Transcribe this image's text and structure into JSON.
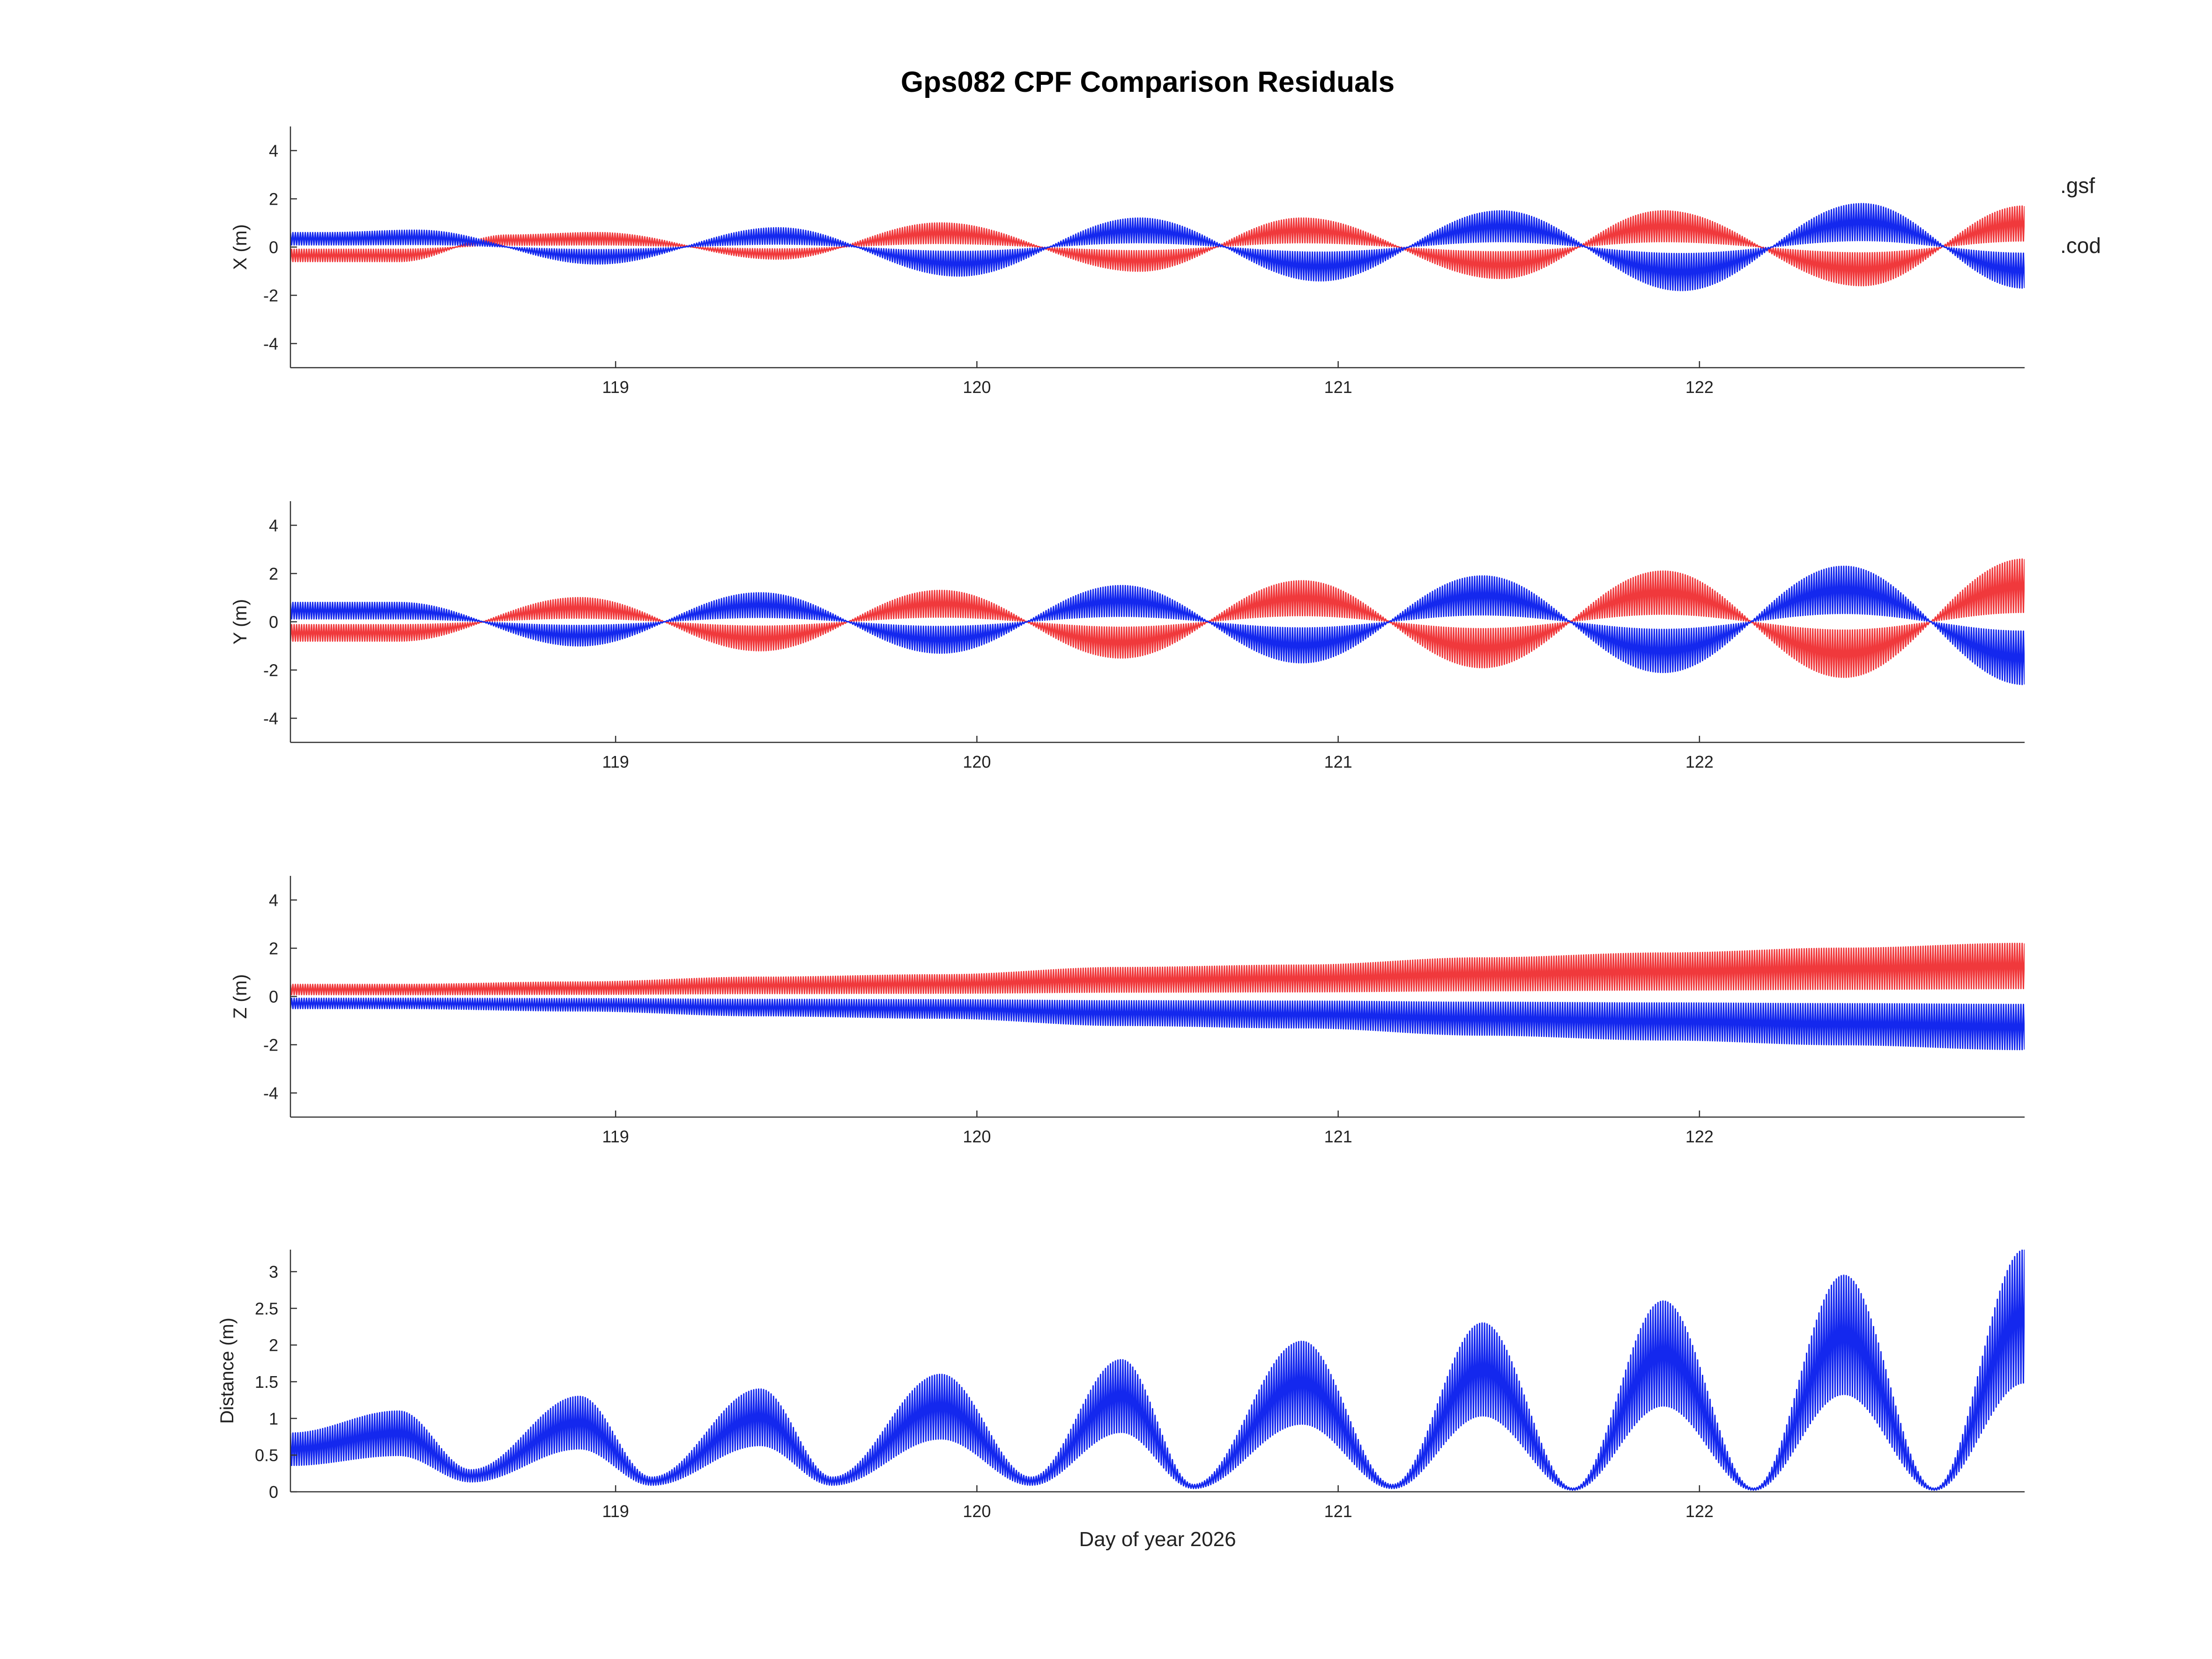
{
  "title": "Gps082 CPF Comparison Residuals",
  "legend": [
    {
      "label": ".gsf",
      "color": "#f0393c"
    },
    {
      "label": ".cod",
      "color": "#1428ee"
    }
  ],
  "chart_data": [
    {
      "type": "line",
      "panel": "X",
      "ylabel": "X (m)",
      "xlim": [
        118.1,
        122.9
      ],
      "ylim": [
        -5,
        5
      ],
      "xticks": [
        "119",
        "120",
        "121",
        "122"
      ],
      "yticks": [
        "4",
        "2",
        "0",
        "-2",
        "-4"
      ],
      "series": [
        {
          "name": ".gsf",
          "envelope_peaks": [
            [
              118.4,
              -0.6
            ],
            [
              118.7,
              0.5
            ],
            [
              118.95,
              0.6
            ],
            [
              119.45,
              -0.5
            ],
            [
              119.9,
              1.0
            ],
            [
              120.45,
              -1.0
            ],
            [
              120.9,
              1.2
            ],
            [
              121.45,
              -1.3
            ],
            [
              121.9,
              1.5
            ],
            [
              122.45,
              -1.6
            ],
            [
              122.9,
              1.7
            ]
          ]
        },
        {
          "name": ".cod",
          "envelope_peaks": [
            [
              118.2,
              0.6
            ],
            [
              118.45,
              0.7
            ],
            [
              118.95,
              -0.7
            ],
            [
              119.45,
              0.8
            ],
            [
              119.95,
              -1.2
            ],
            [
              120.45,
              1.2
            ],
            [
              120.95,
              -1.4
            ],
            [
              121.45,
              1.5
            ],
            [
              121.95,
              -1.8
            ],
            [
              122.45,
              1.8
            ],
            [
              122.9,
              -1.7
            ]
          ]
        }
      ]
    },
    {
      "type": "line",
      "panel": "Y",
      "ylabel": "Y (m)",
      "xlim": [
        118.1,
        122.9
      ],
      "ylim": [
        -5,
        5
      ],
      "xticks": [
        "119",
        "120",
        "121",
        "122"
      ],
      "yticks": [
        "4",
        "2",
        "0",
        "-2",
        "-4"
      ],
      "series": [
        {
          "name": ".gsf",
          "envelope_peaks": [
            [
              118.4,
              -0.8
            ],
            [
              118.9,
              1.0
            ],
            [
              119.4,
              -1.2
            ],
            [
              119.9,
              1.3
            ],
            [
              120.4,
              -1.5
            ],
            [
              120.9,
              1.7
            ],
            [
              121.4,
              -1.9
            ],
            [
              121.9,
              2.1
            ],
            [
              122.4,
              -2.3
            ],
            [
              122.9,
              2.6
            ]
          ]
        },
        {
          "name": ".cod",
          "envelope_peaks": [
            [
              118.4,
              0.8
            ],
            [
              118.9,
              -1.0
            ],
            [
              119.4,
              1.2
            ],
            [
              119.9,
              -1.3
            ],
            [
              120.4,
              1.5
            ],
            [
              120.9,
              -1.7
            ],
            [
              121.4,
              1.9
            ],
            [
              121.9,
              -2.1
            ],
            [
              122.4,
              2.3
            ],
            [
              122.9,
              -2.6
            ]
          ]
        }
      ]
    },
    {
      "type": "line",
      "panel": "Z",
      "ylabel": "Z (m)",
      "xlim": [
        118.1,
        122.9
      ],
      "ylim": [
        -5,
        5
      ],
      "xticks": [
        "119",
        "120",
        "121",
        "122"
      ],
      "yticks": [
        "4",
        "2",
        "0",
        "-2",
        "-4"
      ],
      "series": [
        {
          "name": ".gsf",
          "envelope_peaks": [
            [
              118.4,
              0.5
            ],
            [
              118.9,
              0.6
            ],
            [
              119.4,
              0.8
            ],
            [
              119.9,
              0.9
            ],
            [
              120.4,
              1.2
            ],
            [
              120.9,
              1.3
            ],
            [
              121.4,
              1.6
            ],
            [
              121.9,
              1.8
            ],
            [
              122.4,
              2.0
            ],
            [
              122.9,
              2.2
            ]
          ]
        },
        {
          "name": ".cod",
          "envelope_peaks": [
            [
              118.4,
              -0.5
            ],
            [
              118.9,
              -0.6
            ],
            [
              119.4,
              -0.8
            ],
            [
              119.9,
              -0.9
            ],
            [
              120.4,
              -1.2
            ],
            [
              120.9,
              -1.3
            ],
            [
              121.4,
              -1.6
            ],
            [
              121.9,
              -1.8
            ],
            [
              122.4,
              -2.0
            ],
            [
              122.9,
              -2.2
            ]
          ]
        }
      ]
    },
    {
      "type": "line",
      "panel": "Distance",
      "ylabel": "Distance (m)",
      "xlabel": "Day of year 2026",
      "xlim": [
        118.1,
        122.9
      ],
      "ylim": [
        0,
        3.3
      ],
      "xticks": [
        "119",
        "120",
        "121",
        "122"
      ],
      "yticks": [
        "3",
        "2.5",
        "2",
        "1.5",
        "1",
        "0.5",
        "0"
      ],
      "series": [
        {
          "name": ".cod",
          "envelope_peaks": [
            [
              118.1,
              0.8
            ],
            [
              118.4,
              1.1
            ],
            [
              118.6,
              0.3
            ],
            [
              118.9,
              1.3
            ],
            [
              119.1,
              0.2
            ],
            [
              119.4,
              1.4
            ],
            [
              119.6,
              0.2
            ],
            [
              119.9,
              1.6
            ],
            [
              120.15,
              0.2
            ],
            [
              120.4,
              1.8
            ],
            [
              120.6,
              0.1
            ],
            [
              120.9,
              2.05
            ],
            [
              121.15,
              0.1
            ],
            [
              121.4,
              2.3
            ],
            [
              121.65,
              0.05
            ],
            [
              121.9,
              2.6
            ],
            [
              122.15,
              0.05
            ],
            [
              122.4,
              2.95
            ],
            [
              122.65,
              0.05
            ],
            [
              122.9,
              3.3
            ]
          ]
        }
      ]
    }
  ]
}
